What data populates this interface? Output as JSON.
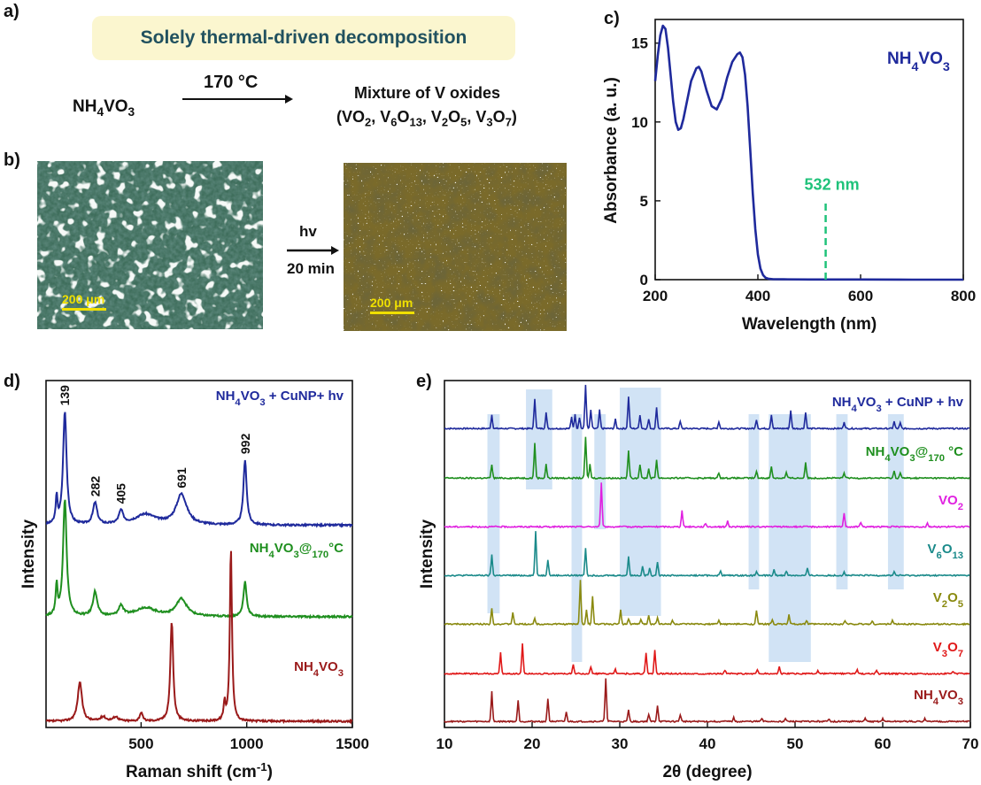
{
  "panel_a": {
    "label": "a)",
    "banner": "Solely thermal-driven decomposition",
    "reactant": "NH4VO3",
    "condition": "170 °C",
    "product_line1": "Mixture of V oxides",
    "product_line2": "(VO2, V6O13, V2O5, V3O7)"
  },
  "panel_b": {
    "label": "b)",
    "arrow_top": "hv",
    "arrow_bottom": "20 min",
    "scale_left": "200 μm",
    "scale_right": "200 μm"
  },
  "colors": {
    "blue": "#1f2a9c",
    "green": "#1f8f1f",
    "magenta": "#e020e0",
    "teal": "#1a8a8a",
    "olive": "#8a8a10",
    "red": "#e01818",
    "darkred": "#9a1a1a",
    "highlight": "#c6dcf3",
    "text_blue": "#1f2a9c",
    "text_green_laser": "#1fc27a",
    "banner_text": "#21515f"
  },
  "chart_data": [
    {
      "id": "c",
      "panel_label": "c)",
      "type": "line",
      "xlabel": "Wavelength (nm)",
      "ylabel": "Absorbance (a. u.)",
      "xlim": [
        200,
        800
      ],
      "ylim": [
        0,
        16.5
      ],
      "xticks": [
        200,
        400,
        600,
        800
      ],
      "yticks": [
        0,
        5,
        10,
        15
      ],
      "series": [
        {
          "name": "NH4VO3",
          "x": [
            200,
            205,
            210,
            215,
            220,
            225,
            230,
            235,
            240,
            245,
            250,
            255,
            260,
            270,
            280,
            285,
            290,
            300,
            310,
            320,
            330,
            340,
            350,
            360,
            365,
            370,
            375,
            380,
            385,
            390,
            395,
            400,
            405,
            410,
            415,
            420,
            430,
            450,
            500,
            600,
            700,
            800
          ],
          "y": [
            12.6,
            14.2,
            15.5,
            16.1,
            15.9,
            14.7,
            13.0,
            11.3,
            10.0,
            9.5,
            9.6,
            10.2,
            11.0,
            12.6,
            13.4,
            13.5,
            13.2,
            12.0,
            11.0,
            10.8,
            11.5,
            12.8,
            13.8,
            14.3,
            14.4,
            14.1,
            13.0,
            11.0,
            8.3,
            5.5,
            3.2,
            1.6,
            0.7,
            0.3,
            0.12,
            0.06,
            0.03,
            0.02,
            0.01,
            0.01,
            0.0,
            0.0
          ]
        }
      ],
      "annotation": {
        "text": "532 nm",
        "x": 532,
        "y_from": 0,
        "y_to": 4.9
      },
      "legend_label": "NH4VO3"
    },
    {
      "id": "d",
      "panel_label": "d)",
      "type": "line",
      "xlabel": "Raman shift (cm-1)",
      "ylabel": "Intensity",
      "xlim": [
        50,
        1500
      ],
      "xticks": [
        500,
        1000,
        1500
      ],
      "peak_labels": [
        {
          "text": "139",
          "x": 139
        },
        {
          "text": "282",
          "x": 282
        },
        {
          "text": "405",
          "x": 405
        },
        {
          "text": "691",
          "x": 691
        },
        {
          "text": "992",
          "x": 992
        }
      ],
      "series": [
        {
          "name": "NH4VO3 + CuNP+ hv",
          "color": "blue",
          "offset": 2.25,
          "peaks": [
            [
              139,
              1.3,
              10
            ],
            [
              100,
              0.3,
              5
            ],
            [
              282,
              0.25,
              12
            ],
            [
              405,
              0.15,
              12
            ],
            [
              520,
              0.12,
              60
            ],
            [
              691,
              0.35,
              30
            ],
            [
              992,
              0.75,
              9
            ]
          ]
        },
        {
          "name": "NH4VO3@170°C",
          "color": "green",
          "offset": 1.2,
          "peaks": [
            [
              139,
              1.35,
              10
            ],
            [
              100,
              0.35,
              5
            ],
            [
              282,
              0.28,
              12
            ],
            [
              405,
              0.12,
              12
            ],
            [
              520,
              0.1,
              60
            ],
            [
              691,
              0.2,
              30
            ],
            [
              992,
              0.4,
              9
            ]
          ]
        },
        {
          "name": "NH4VO3",
          "color": "darkred",
          "offset": 0.0,
          "peaks": [
            [
              210,
              0.45,
              12
            ],
            [
              500,
              0.1,
              8
            ],
            [
              645,
              1.15,
              8
            ],
            [
              895,
              0.2,
              5
            ],
            [
              925,
              2.0,
              6
            ],
            [
              320,
              0.05,
              15
            ],
            [
              380,
              0.05,
              15
            ]
          ]
        }
      ]
    },
    {
      "id": "e",
      "panel_label": "e)",
      "type": "line",
      "xlabel": "2θ (degree)",
      "ylabel": "Intensity",
      "xlim": [
        10,
        70
      ],
      "xticks": [
        10,
        20,
        30,
        40,
        50,
        60,
        70
      ],
      "highlight_bands": [
        [
          14.9,
          16.3
        ],
        [
          19.3,
          22.3
        ],
        [
          24.5,
          25.7
        ],
        [
          27.1,
          28.4
        ],
        [
          30.0,
          34.7
        ],
        [
          44.7,
          45.9
        ],
        [
          47.0,
          51.8
        ],
        [
          54.7,
          56.0
        ],
        [
          60.6,
          62.4
        ]
      ],
      "series": [
        {
          "name": "NH4VO3 + CuNP + hv",
          "color": "blue",
          "offset": 6,
          "peaks": [
            [
              15.4,
              0.3
            ],
            [
              20.3,
              0.65
            ],
            [
              21.6,
              0.35
            ],
            [
              24.5,
              0.25
            ],
            [
              24.9,
              0.3
            ],
            [
              25.4,
              0.25
            ],
            [
              26.1,
              0.95
            ],
            [
              26.7,
              0.4
            ],
            [
              27.7,
              0.4
            ],
            [
              29.5,
              0.2
            ],
            [
              31.0,
              0.7
            ],
            [
              32.3,
              0.3
            ],
            [
              33.3,
              0.2
            ],
            [
              34.2,
              0.45
            ],
            [
              36.9,
              0.15
            ],
            [
              41.3,
              0.15
            ],
            [
              45.6,
              0.2
            ],
            [
              47.3,
              0.3
            ],
            [
              49.5,
              0.4
            ],
            [
              51.2,
              0.35
            ],
            [
              55.6,
              0.15
            ],
            [
              61.3,
              0.15
            ],
            [
              62.0,
              0.12
            ]
          ]
        },
        {
          "name": "NH4VO3@170 °C",
          "color": "green",
          "offset": 5,
          "peaks": [
            [
              15.4,
              0.3
            ],
            [
              20.3,
              0.75
            ],
            [
              21.6,
              0.3
            ],
            [
              26.1,
              0.9
            ],
            [
              26.6,
              0.3
            ],
            [
              31.0,
              0.6
            ],
            [
              32.3,
              0.3
            ],
            [
              33.3,
              0.2
            ],
            [
              34.2,
              0.4
            ],
            [
              41.3,
              0.12
            ],
            [
              45.6,
              0.15
            ],
            [
              47.3,
              0.25
            ],
            [
              49.0,
              0.12
            ],
            [
              51.2,
              0.35
            ],
            [
              55.6,
              0.12
            ],
            [
              61.3,
              0.15
            ],
            [
              62.0,
              0.12
            ]
          ]
        },
        {
          "name": "VO2",
          "color": "magenta",
          "offset": 4,
          "peaks": [
            [
              27.9,
              0.95
            ],
            [
              37.1,
              0.35
            ],
            [
              39.8,
              0.08
            ],
            [
              42.3,
              0.12
            ],
            [
              55.6,
              0.3
            ],
            [
              57.5,
              0.1
            ],
            [
              65.1,
              0.08
            ]
          ]
        },
        {
          "name": "V6O13",
          "color": "teal",
          "offset": 3,
          "peaks": [
            [
              15.4,
              0.45
            ],
            [
              20.4,
              0.95
            ],
            [
              21.8,
              0.35
            ],
            [
              26.1,
              0.6
            ],
            [
              31.0,
              0.4
            ],
            [
              32.6,
              0.2
            ],
            [
              33.4,
              0.15
            ],
            [
              34.3,
              0.3
            ],
            [
              41.5,
              0.1
            ],
            [
              45.6,
              0.1
            ],
            [
              47.6,
              0.12
            ],
            [
              49.0,
              0.1
            ],
            [
              51.4,
              0.15
            ],
            [
              55.6,
              0.08
            ],
            [
              61.3,
              0.08
            ]
          ]
        },
        {
          "name": "V2O5",
          "color": "olive",
          "offset": 2,
          "peaks": [
            [
              15.4,
              0.35
            ],
            [
              17.8,
              0.25
            ],
            [
              20.3,
              0.12
            ],
            [
              25.5,
              0.95
            ],
            [
              26.2,
              0.3
            ],
            [
              26.9,
              0.6
            ],
            [
              30.1,
              0.3
            ],
            [
              31.0,
              0.12
            ],
            [
              32.4,
              0.1
            ],
            [
              33.3,
              0.2
            ],
            [
              34.3,
              0.15
            ],
            [
              36.0,
              0.08
            ],
            [
              41.3,
              0.08
            ],
            [
              45.6,
              0.3
            ],
            [
              47.4,
              0.1
            ],
            [
              49.3,
              0.2
            ],
            [
              51.3,
              0.08
            ],
            [
              55.7,
              0.08
            ],
            [
              58.8,
              0.06
            ],
            [
              61.1,
              0.08
            ]
          ]
        },
        {
          "name": "V3O7",
          "color": "red",
          "offset": 1,
          "peaks": [
            [
              16.4,
              0.45
            ],
            [
              18.9,
              0.65
            ],
            [
              24.7,
              0.2
            ],
            [
              26.7,
              0.15
            ],
            [
              29.5,
              0.1
            ],
            [
              33.0,
              0.45
            ],
            [
              34.0,
              0.5
            ],
            [
              42.0,
              0.08
            ],
            [
              45.7,
              0.08
            ],
            [
              48.2,
              0.15
            ],
            [
              52.6,
              0.06
            ],
            [
              57.1,
              0.08
            ],
            [
              59.3,
              0.06
            ],
            [
              68.0,
              0.06
            ]
          ]
        },
        {
          "name": "NH4VO3",
          "color": "darkred",
          "offset": 0,
          "peaks": [
            [
              15.4,
              0.65
            ],
            [
              18.4,
              0.45
            ],
            [
              21.8,
              0.5
            ],
            [
              23.9,
              0.2
            ],
            [
              28.4,
              0.95
            ],
            [
              31.0,
              0.25
            ],
            [
              33.3,
              0.15
            ],
            [
              34.3,
              0.35
            ],
            [
              36.9,
              0.15
            ],
            [
              43.0,
              0.08
            ],
            [
              46.2,
              0.06
            ],
            [
              48.9,
              0.06
            ],
            [
              53.9,
              0.06
            ],
            [
              58.0,
              0.06
            ],
            [
              60.0,
              0.06
            ],
            [
              64.8,
              0.06
            ]
          ]
        }
      ]
    }
  ]
}
